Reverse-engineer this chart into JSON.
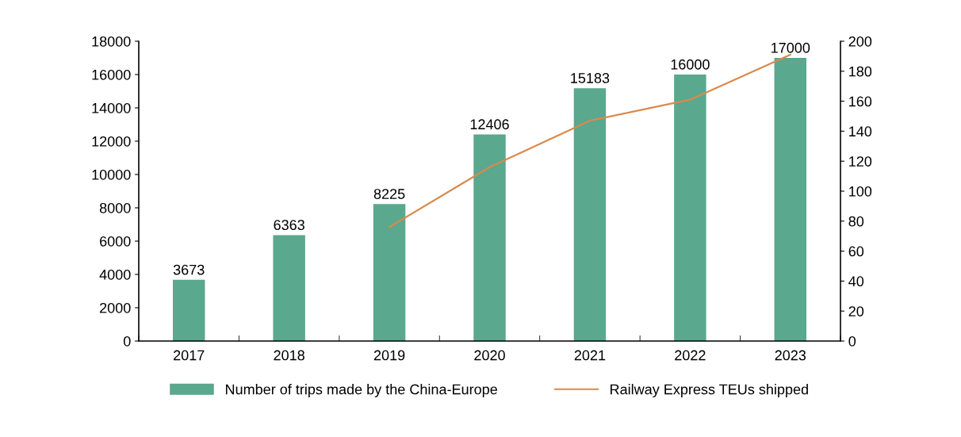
{
  "chart_data": {
    "type": "bar",
    "categories": [
      "2017",
      "2018",
      "2019",
      "2020",
      "2021",
      "2022",
      "2023"
    ],
    "series": [
      {
        "name": "Number of trips made by the China-Europe",
        "color": "#5aa88e",
        "values": [
          3673,
          6363,
          8225,
          12406,
          15183,
          16000,
          17000
        ],
        "value_labels": [
          "3673",
          "6363",
          "8225",
          "12406",
          "15183",
          "16000",
          "17000"
        ]
      },
      {
        "name": "Railway Express TEUs shipped",
        "type": "line",
        "axis": "y2",
        "color": "#d98a4c",
        "values": [
          null,
          null,
          76,
          116,
          147,
          161,
          191
        ]
      }
    ],
    "ylim": [
      0,
      18000
    ],
    "yticks": [
      0,
      2000,
      4000,
      6000,
      8000,
      10000,
      12000,
      14000,
      16000,
      18000
    ],
    "y2lim": [
      0,
      200
    ],
    "y2ticks": [
      0,
      20,
      40,
      60,
      80,
      100,
      120,
      140,
      160,
      180,
      200
    ],
    "grid": false,
    "legend": "bottom",
    "marker": "none",
    "line_style": "solid"
  }
}
